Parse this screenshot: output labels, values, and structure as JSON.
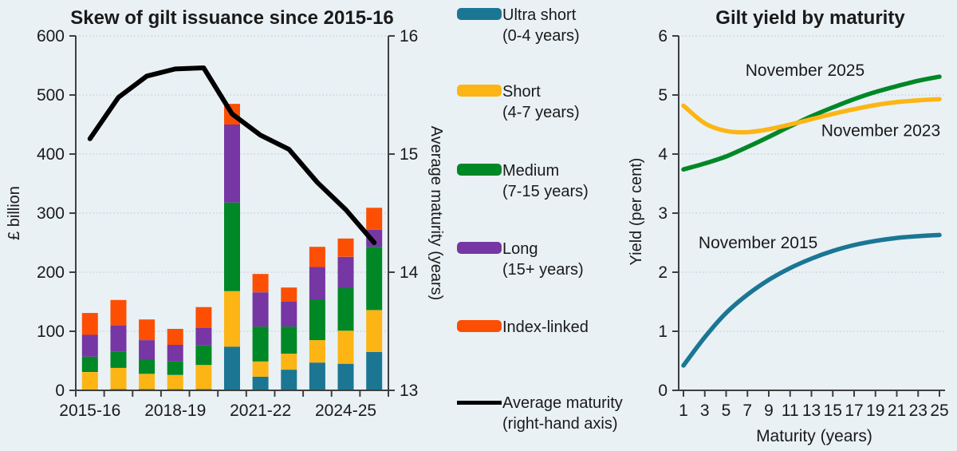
{
  "page": {
    "background": "#E9F1F5",
    "text_color": "#1a1a1a",
    "axis_color": "#3f3f3f",
    "grid_color": "#c5cdd2"
  },
  "legend": {
    "items": [
      {
        "type": "swatch",
        "color": "#1B7694",
        "label": "Ultra short",
        "sublabel": "(0-4 years)"
      },
      {
        "type": "swatch",
        "color": "#FCB515",
        "label": "Short",
        "sublabel": "(4-7 years)"
      },
      {
        "type": "swatch",
        "color": "#008726",
        "label": "Medium",
        "sublabel": "(7-15 years)"
      },
      {
        "type": "swatch",
        "color": "#7636A3",
        "label": "Long",
        "sublabel": "(15+ years)"
      },
      {
        "type": "swatch",
        "color": "#FC4F04",
        "label": "Index-linked",
        "sublabel": ""
      },
      {
        "type": "line",
        "color": "#000000",
        "label": "Average maturity",
        "sublabel": "(right-hand axis)"
      }
    ]
  },
  "chart_data": [
    {
      "type": "bar",
      "title": "Skew of gilt issuance since 2015-16",
      "ylabel": "£ billion",
      "y2label": "Average maturity (years)",
      "ylim": [
        0,
        600
      ],
      "yticks": [
        0,
        100,
        200,
        300,
        400,
        500,
        600
      ],
      "y2lim": [
        13,
        16
      ],
      "y2ticks": [
        13,
        14,
        15,
        16
      ],
      "grid": "dotted",
      "categories": [
        "2015-16",
        "2016-17",
        "2017-18",
        "2018-19",
        "2019-20",
        "2020-21",
        "2021-22",
        "2022-23",
        "2023-24",
        "2024-25",
        "2025-26"
      ],
      "xtick_labels": [
        "2015-16",
        "2018-19",
        "2021-22",
        "2024-25"
      ],
      "xtick_indices": [
        0,
        3,
        6,
        9
      ],
      "series": [
        {
          "name": "Ultra short (0-4 years)",
          "color": "#1B7694",
          "values": [
            0,
            2,
            2,
            2,
            2,
            74,
            23,
            35,
            47,
            45,
            65
          ]
        },
        {
          "name": "Short (4-7 years)",
          "color": "#FCB515",
          "values": [
            31,
            36,
            26,
            24,
            41,
            94,
            26,
            27,
            38,
            56,
            71
          ]
        },
        {
          "name": "Medium (7-15 years)",
          "color": "#008726",
          "values": [
            26,
            28,
            24,
            23,
            33,
            150,
            59,
            46,
            69,
            72,
            107
          ]
        },
        {
          "name": "Long (15+ years)",
          "color": "#7636A3",
          "values": [
            37,
            44,
            33,
            28,
            30,
            132,
            58,
            42,
            55,
            53,
            29
          ]
        },
        {
          "name": "Index-linked",
          "color": "#FC4F04",
          "values": [
            37,
            43,
            35,
            27,
            35,
            35,
            31,
            24,
            34,
            31,
            37
          ]
        }
      ],
      "line_series": {
        "name": "Average maturity (right-hand axis)",
        "color": "#000000",
        "axis": "y2",
        "values": [
          15.13,
          15.48,
          15.66,
          15.72,
          15.73,
          15.34,
          15.16,
          15.04,
          14.76,
          14.53,
          14.25
        ]
      }
    },
    {
      "type": "line",
      "title": "Gilt yield by maturity",
      "xlabel": "Maturity (years)",
      "ylabel": "Yield (per cent)",
      "xlim": [
        1,
        25
      ],
      "xticks": [
        1,
        3,
        5,
        7,
        9,
        11,
        13,
        15,
        17,
        19,
        21,
        23,
        25
      ],
      "ylim": [
        0,
        6
      ],
      "yticks": [
        0,
        1,
        2,
        3,
        4,
        5,
        6
      ],
      "grid": "dotted",
      "x": [
        1,
        3,
        5,
        7,
        9,
        11,
        13,
        15,
        17,
        19,
        21,
        23,
        25
      ],
      "series": [
        {
          "name": "November 2025",
          "color": "#008726",
          "values": [
            3.74,
            3.84,
            3.96,
            4.12,
            4.29,
            4.47,
            4.64,
            4.79,
            4.93,
            5.05,
            5.15,
            5.24,
            5.31
          ],
          "label_pos": {
            "x": 12.4,
            "y": 5.42
          }
        },
        {
          "name": "November 2023",
          "color": "#FCB515",
          "values": [
            4.82,
            4.52,
            4.39,
            4.37,
            4.42,
            4.5,
            4.59,
            4.68,
            4.76,
            4.83,
            4.88,
            4.91,
            4.93
          ],
          "label_pos": {
            "x": 19.5,
            "y": 4.4
          }
        },
        {
          "name": "November 2015",
          "color": "#1B7694",
          "values": [
            0.42,
            0.9,
            1.31,
            1.62,
            1.87,
            2.07,
            2.23,
            2.36,
            2.46,
            2.53,
            2.58,
            2.61,
            2.63
          ],
          "label_pos": {
            "x": 8.0,
            "y": 2.5
          }
        }
      ]
    }
  ]
}
